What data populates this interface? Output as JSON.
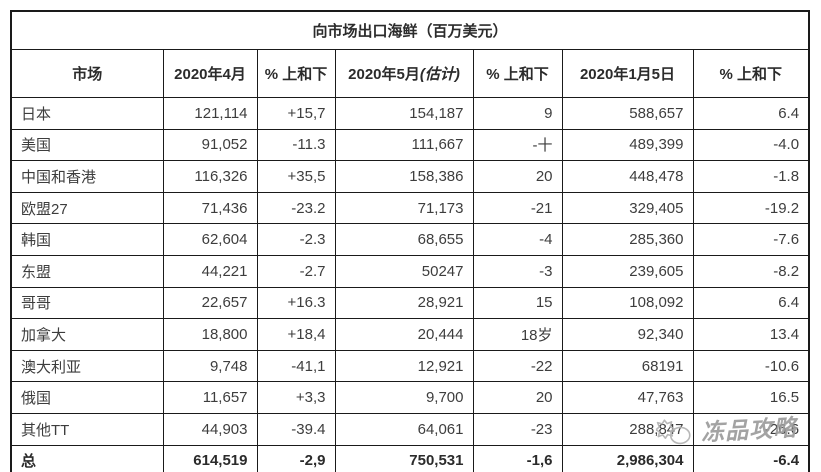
{
  "title": "向市场出口海鲜（百万美元）",
  "table": {
    "headers": [
      "市场",
      "2020年4月",
      "% 上和下",
      "2020年5月",
      "% 上和下",
      "2020年1月5日",
      "% 上和下"
    ],
    "estimate_suffix": "(估计)",
    "rows": [
      [
        "日本",
        "121,114",
        "+15,7",
        "154,187",
        "9",
        "588,657",
        "6.4"
      ],
      [
        "美国",
        "91,052",
        "-11.3",
        "111,667",
        "-十",
        "489,399",
        "-4.0"
      ],
      [
        "中国和香港",
        "116,326",
        "+35,5",
        "158,386",
        "20",
        "448,478",
        "-1.8"
      ],
      [
        "欧盟27",
        "71,436",
        "-23.2",
        "71,173",
        "-21",
        "329,405",
        "-19.2"
      ],
      [
        "韩国",
        "62,604",
        "-2.3",
        "68,655",
        "-4",
        "285,360",
        "-7.6"
      ],
      [
        "东盟",
        "44,221",
        "-2.7",
        "50247",
        "-3",
        "239,605",
        "-8.2"
      ],
      [
        "哥哥",
        "22,657",
        "+16.3",
        "28,921",
        "15",
        "108,092",
        "6.4"
      ],
      [
        "加拿大",
        "18,800",
        "+18,4",
        "20,444",
        "18岁",
        "92,340",
        "13.4"
      ],
      [
        "澳大利亚",
        "9,748",
        "-41,1",
        "12,921",
        "-22",
        "68191",
        "-10.6"
      ],
      [
        "俄国",
        "11,657",
        "+3,3",
        "9,700",
        "20",
        "47,763",
        "16.5"
      ],
      [
        "其他TT",
        "44,903",
        "-39.4",
        "64,061",
        "-23",
        "288,847",
        "-26.6"
      ]
    ],
    "total_row": [
      "总",
      "614,519",
      "-2,9",
      "750,531",
      "-1,6",
      "2,986,304",
      "-6.4"
    ]
  },
  "watermark": {
    "text": "冻品攻略"
  },
  "colors": {
    "background": "#ffffff",
    "border": "#1a1a1a",
    "text": "#3d3d3d",
    "watermark": "#9c9c9c"
  }
}
